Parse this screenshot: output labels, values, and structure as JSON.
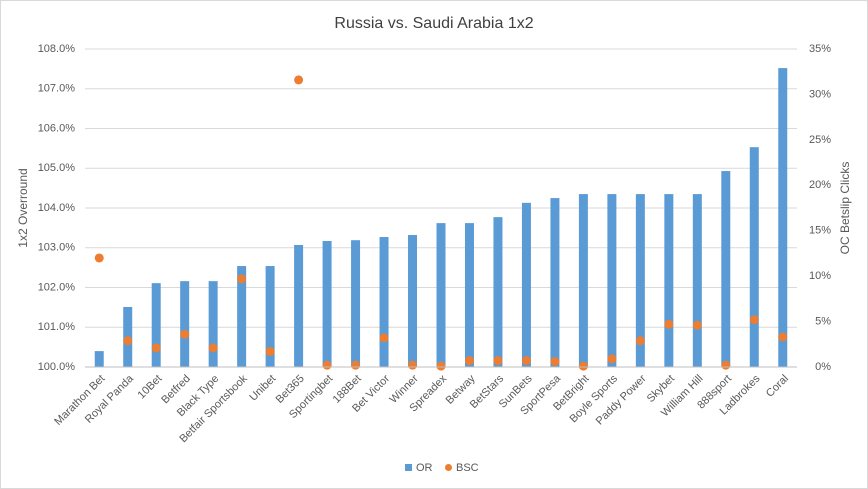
{
  "chart_data": {
    "type": "bar",
    "title": "Russia vs. Saudi Arabia 1x2",
    "ylabel": "1x2 Overround",
    "y2label": "OC Betslip Clicks",
    "categories": [
      "Marathon Bet",
      "Royal Panda",
      "10Bet",
      "Betfred",
      "Black Type",
      "Betfair Sportsbook",
      "Unibet",
      "Bet365",
      "Sportingbet",
      "188Bet",
      "Bet Victor",
      "Winner",
      "Spreadex",
      "Betway",
      "BetStars",
      "SunBets",
      "SportPesa",
      "BetBright",
      "Boyle Sports",
      "Paddy Power",
      "Skybet",
      "William Hill",
      "888sport",
      "Ladbrokes",
      "Coral"
    ],
    "series": [
      {
        "name": "OR",
        "type": "bar",
        "color": "#5b9bd5",
        "values": [
          100.4,
          101.51,
          102.11,
          102.16,
          102.16,
          102.54,
          102.54,
          103.07,
          103.17,
          103.19,
          103.27,
          103.32,
          103.62,
          103.62,
          103.77,
          104.13,
          104.25,
          104.35,
          104.35,
          104.35,
          104.35,
          104.35,
          104.93,
          105.53,
          107.52
        ]
      },
      {
        "name": "BSC",
        "type": "scatter",
        "axis": "y2",
        "color": "#ed7d31",
        "values": [
          12.0,
          2.9,
          2.1,
          3.6,
          2.1,
          9.7,
          1.7,
          31.6,
          0.2,
          0.2,
          3.2,
          0.2,
          0.1,
          0.7,
          0.7,
          0.7,
          0.6,
          0.1,
          0.9,
          2.9,
          4.7,
          4.6,
          0.2,
          5.2,
          3.3
        ]
      }
    ],
    "ylim": [
      100,
      108
    ],
    "yticks": [
      {
        "value": 100,
        "label": "100.0%"
      },
      {
        "value": 101,
        "label": "101.0%"
      },
      {
        "value": 102,
        "label": "102.0%"
      },
      {
        "value": 103,
        "label": "103.0%"
      },
      {
        "value": 104,
        "label": "104.0%"
      },
      {
        "value": 105,
        "label": "105.0%"
      },
      {
        "value": 106,
        "label": "106.0%"
      },
      {
        "value": 107,
        "label": "107.0%"
      },
      {
        "value": 108,
        "label": "108.0%"
      }
    ],
    "y2lim": [
      0,
      35
    ],
    "y2ticks": [
      {
        "value": 0,
        "label": "0%"
      },
      {
        "value": 5,
        "label": "5%"
      },
      {
        "value": 10,
        "label": "10%"
      },
      {
        "value": 15,
        "label": "15%"
      },
      {
        "value": 20,
        "label": "20%"
      },
      {
        "value": 25,
        "label": "25%"
      },
      {
        "value": 30,
        "label": "30%"
      },
      {
        "value": 35,
        "label": "35%"
      }
    ],
    "grid": true,
    "legend": "bottom"
  }
}
